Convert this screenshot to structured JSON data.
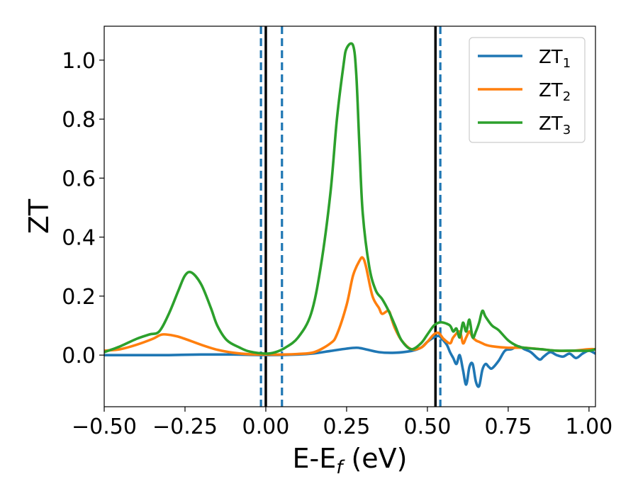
{
  "chart_data": {
    "type": "line",
    "xlabel": "E-E",
    "xlabel_sub": "f",
    "xlabel_unit": " (eV)",
    "ylabel": "ZT",
    "xlim": [
      -0.5,
      1.02
    ],
    "ylim": [
      -0.175,
      1.115
    ],
    "x_ticks": [
      -0.5,
      -0.25,
      0.0,
      0.25,
      0.5,
      0.75,
      1.0
    ],
    "x_tick_labels": [
      "−0.50",
      "−0.25",
      "0.00",
      "0.25",
      "0.50",
      "0.75",
      "1.00"
    ],
    "y_ticks": [
      0.0,
      0.2,
      0.4,
      0.6,
      0.8,
      1.0
    ],
    "y_tick_labels": [
      "0.0",
      "0.2",
      "0.4",
      "0.6",
      "0.8",
      "1.0"
    ],
    "grid": false,
    "legend_position": "top-right",
    "vlines_solid": [
      0.0,
      0.525
    ],
    "vlines_dashed": [
      -0.015,
      0.05,
      0.54
    ],
    "vline_colors": {
      "solid": "#000000",
      "dashed": "#1f77b4"
    },
    "series": [
      {
        "name": "ZT",
        "name_sub": "1",
        "color": "#1f77b4",
        "x": [
          -0.5,
          -0.4,
          -0.3,
          -0.2,
          -0.1,
          0.0,
          0.1,
          0.15,
          0.2,
          0.25,
          0.28,
          0.3,
          0.35,
          0.4,
          0.45,
          0.48,
          0.5,
          0.52,
          0.535,
          0.545,
          0.56,
          0.57,
          0.58,
          0.59,
          0.6,
          0.61,
          0.62,
          0.63,
          0.64,
          0.65,
          0.66,
          0.67,
          0.68,
          0.69,
          0.7,
          0.72,
          0.74,
          0.76,
          0.78,
          0.8,
          0.82,
          0.84,
          0.85,
          0.86,
          0.88,
          0.9,
          0.92,
          0.94,
          0.96,
          0.98,
          1.0,
          1.02
        ],
        "y": [
          0.0,
          0.0,
          0.0,
          0.002,
          0.002,
          0.0,
          0.002,
          0.006,
          0.014,
          0.022,
          0.025,
          0.022,
          0.01,
          0.008,
          0.014,
          0.025,
          0.045,
          0.06,
          0.065,
          0.055,
          0.035,
          0.01,
          -0.01,
          -0.03,
          0.0,
          -0.05,
          -0.1,
          -0.04,
          -0.03,
          -0.09,
          -0.105,
          -0.05,
          -0.03,
          -0.04,
          -0.045,
          -0.02,
          0.015,
          0.02,
          0.03,
          0.02,
          0.01,
          -0.01,
          -0.015,
          -0.005,
          0.01,
          0.0,
          -0.005,
          0.005,
          -0.01,
          0.005,
          0.015,
          0.005
        ]
      },
      {
        "name": "ZT",
        "name_sub": "2",
        "color": "#ff7f0e",
        "x": [
          -0.5,
          -0.45,
          -0.4,
          -0.35,
          -0.32,
          -0.28,
          -0.25,
          -0.2,
          -0.15,
          -0.1,
          -0.05,
          0.0,
          0.05,
          0.1,
          0.15,
          0.2,
          0.22,
          0.25,
          0.27,
          0.29,
          0.3,
          0.31,
          0.33,
          0.35,
          0.36,
          0.38,
          0.39,
          0.4,
          0.42,
          0.45,
          0.48,
          0.5,
          0.52,
          0.535,
          0.55,
          0.57,
          0.58,
          0.6,
          0.61,
          0.62,
          0.63,
          0.64,
          0.65,
          0.66,
          0.67,
          0.68,
          0.7,
          0.75,
          0.8,
          0.85,
          0.9,
          0.95,
          1.0,
          1.02
        ],
        "y": [
          0.015,
          0.02,
          0.035,
          0.055,
          0.07,
          0.065,
          0.055,
          0.035,
          0.018,
          0.008,
          0.003,
          0.002,
          0.002,
          0.004,
          0.01,
          0.04,
          0.07,
          0.17,
          0.27,
          0.32,
          0.33,
          0.3,
          0.2,
          0.16,
          0.14,
          0.15,
          0.12,
          0.09,
          0.05,
          0.02,
          0.025,
          0.045,
          0.07,
          0.075,
          0.055,
          0.04,
          0.06,
          0.08,
          0.04,
          0.06,
          0.08,
          0.06,
          0.05,
          0.045,
          0.04,
          0.035,
          0.03,
          0.025,
          0.025,
          0.02,
          0.015,
          0.015,
          0.02,
          0.02
        ]
      },
      {
        "name": "ZT",
        "name_sub": "3",
        "color": "#2ca02c",
        "x": [
          -0.5,
          -0.45,
          -0.4,
          -0.36,
          -0.33,
          -0.3,
          -0.27,
          -0.25,
          -0.23,
          -0.2,
          -0.17,
          -0.15,
          -0.12,
          -0.08,
          -0.05,
          0.0,
          0.03,
          0.06,
          0.1,
          0.14,
          0.17,
          0.2,
          0.22,
          0.24,
          0.25,
          0.27,
          0.28,
          0.29,
          0.3,
          0.32,
          0.34,
          0.36,
          0.38,
          0.4,
          0.42,
          0.45,
          0.48,
          0.5,
          0.52,
          0.535,
          0.55,
          0.57,
          0.58,
          0.59,
          0.6,
          0.61,
          0.62,
          0.63,
          0.64,
          0.65,
          0.66,
          0.67,
          0.68,
          0.7,
          0.72,
          0.75,
          0.78,
          0.8,
          0.85,
          0.9,
          0.95,
          1.0,
          1.02
        ],
        "y": [
          0.01,
          0.03,
          0.055,
          0.07,
          0.08,
          0.14,
          0.22,
          0.27,
          0.28,
          0.24,
          0.16,
          0.1,
          0.05,
          0.025,
          0.012,
          0.005,
          0.01,
          0.025,
          0.06,
          0.14,
          0.3,
          0.55,
          0.8,
          0.98,
          1.04,
          1.05,
          0.95,
          0.7,
          0.48,
          0.3,
          0.22,
          0.19,
          0.15,
          0.1,
          0.05,
          0.02,
          0.04,
          0.07,
          0.1,
          0.11,
          0.11,
          0.1,
          0.08,
          0.09,
          0.06,
          0.11,
          0.08,
          0.12,
          0.06,
          0.08,
          0.11,
          0.15,
          0.13,
          0.1,
          0.085,
          0.05,
          0.03,
          0.025,
          0.02,
          0.015,
          0.015,
          0.015,
          0.02
        ]
      }
    ]
  }
}
